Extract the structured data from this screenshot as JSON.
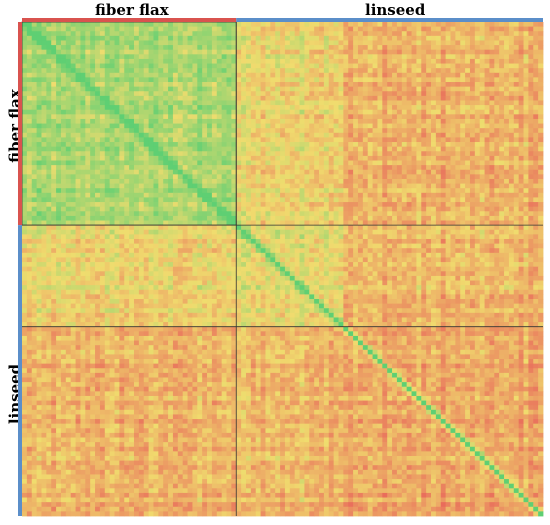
{
  "chart_data": {
    "type": "heatmap",
    "title": "",
    "group_labels_top": [
      "fiber flax",
      "linseed"
    ],
    "group_labels_left": [
      "fiber flax",
      "linseed"
    ],
    "groups": [
      {
        "name": "fiber flax",
        "size": 44
      },
      {
        "name": "linseed",
        "size": 63
      }
    ],
    "sub_blocks_linseed": [
      22,
      41
    ],
    "block_mean_similarity": {
      "fiber flax-fiber flax": 0.72,
      "fiber flax-linseed_a": 0.48,
      "fiber flax-linseed_b": 0.32,
      "linseed_a-linseed_a": 0.55,
      "linseed_a-linseed_b": 0.36,
      "linseed_b-linseed_b": 0.28
    },
    "diagonal_value": 1.0,
    "color_scale": {
      "low": "#e8645a",
      "mid": "#f0dc6e",
      "high": "#5fcf73"
    },
    "group_bar_colors": {
      "fiber flax": "#d9534f",
      "linseed": "#5b8ec9"
    }
  }
}
